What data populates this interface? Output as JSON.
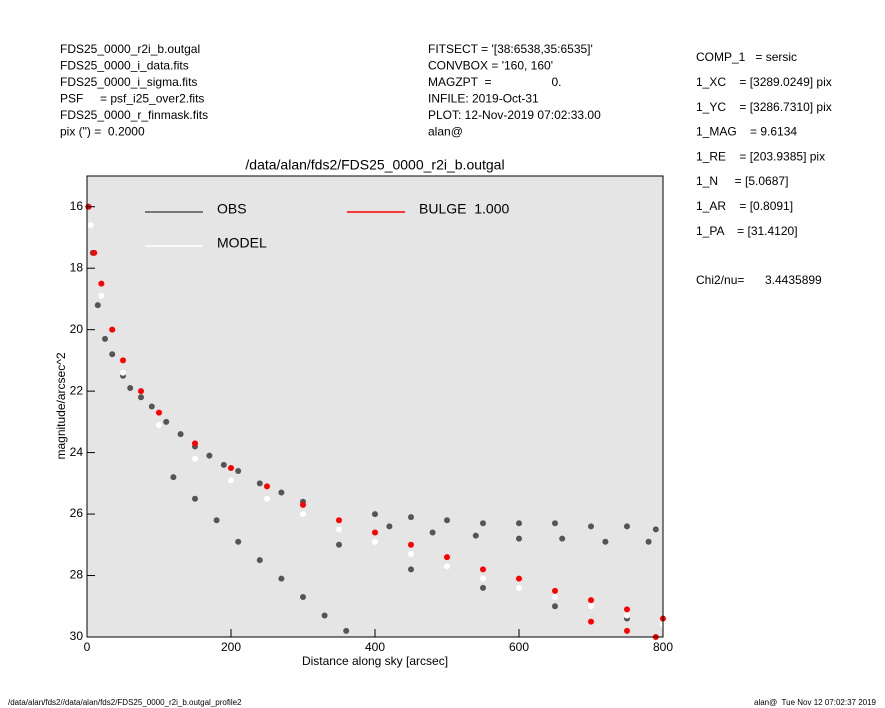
{
  "header_left": [
    "FDS25_0000_r2i_b.outgal",
    "FDS25_0000_i_data.fits",
    "FDS25_0000_i_sigma.fits",
    "PSF     = psf_i25_over2.fits",
    "FDS25_0000_r_finmask.fits",
    "pix (\") =  0.2000"
  ],
  "header_center": [
    "FITSECT = '[38:6538,35:6535]'",
    "CONVBOX = '160, 160'",
    "MAGZPT  =                  0.",
    "INFILE: 2019-Oct-31",
    "PLOT: 12-Nov-2019 07:02:33.00",
    "alan@"
  ],
  "params": [
    "COMP_1   = sersic",
    "1_XC    = [3289.0249] pix",
    "1_YC    = [3286.7310] pix",
    "1_MAG    = 9.6134",
    "1_RE    = [203.9385] pix",
    "1_N     = [5.0687]",
    "1_AR    = [0.8091]",
    "1_PA    = [31.4120]"
  ],
  "chi2_label": "Chi2/nu=",
  "chi2_value": "3.4435899",
  "footer_left": "/data/alan/fds2//data/alan/fds2/FDS25_0000_r2i_b.outgal_profile2",
  "footer_right": "alan@  Tue Nov 12 07:02:37 2019",
  "chart_data": {
    "type": "scatter",
    "title": "/data/alan/fds2/FDS25_0000_r2i_b.outgal",
    "x_label": "Distance along sky [arcsec]",
    "y_label": "magnitude/arcsec^2",
    "xlim": [
      0,
      800
    ],
    "ylim": [
      30,
      15
    ],
    "xticks": [
      0,
      200,
      400,
      600,
      800
    ],
    "yticks": [
      16,
      18,
      20,
      22,
      24,
      26,
      28,
      30
    ],
    "series": [
      {
        "name": "OBS",
        "color": "#555555",
        "x": [
          2,
          8,
          15,
          25,
          35,
          50,
          60,
          75,
          90,
          110,
          130,
          150,
          170,
          190,
          210,
          240,
          270,
          300,
          120,
          150,
          180,
          210,
          240,
          270,
          300,
          330,
          360,
          400,
          450,
          500,
          550,
          600,
          650,
          700,
          750,
          790,
          420,
          480,
          540,
          600,
          660,
          720,
          780,
          350,
          450,
          550,
          650,
          750
        ],
        "values": [
          16.0,
          17.5,
          19.2,
          20.3,
          20.8,
          21.5,
          21.9,
          22.2,
          22.5,
          23.0,
          23.4,
          23.8,
          24.1,
          24.4,
          24.6,
          25.0,
          25.3,
          25.6,
          24.8,
          25.5,
          26.2,
          26.9,
          27.5,
          28.1,
          28.7,
          29.3,
          29.8,
          26.0,
          26.1,
          26.2,
          26.3,
          26.3,
          26.3,
          26.4,
          26.4,
          26.5,
          26.4,
          26.6,
          26.7,
          26.8,
          26.8,
          26.9,
          26.9,
          27.0,
          27.8,
          28.4,
          29.0,
          29.4
        ]
      },
      {
        "name": "MODEL",
        "color": "#ffffff",
        "x": [
          5,
          20,
          50,
          100,
          150,
          200,
          250,
          300,
          350,
          400,
          450,
          500,
          550,
          600,
          650,
          700,
          750,
          800
        ],
        "values": [
          16.6,
          18.9,
          21.4,
          23.1,
          24.2,
          24.9,
          25.5,
          26.0,
          26.5,
          26.9,
          27.3,
          27.7,
          28.1,
          28.4,
          28.7,
          29.0,
          29.3,
          29.6
        ]
      },
      {
        "name": "BULGE  1.000",
        "color": "#ff0000",
        "x": [
          2,
          10,
          20,
          35,
          50,
          75,
          100,
          150,
          200,
          250,
          300,
          350,
          400,
          450,
          500,
          550,
          600,
          650,
          700,
          750,
          800,
          700,
          750,
          790
        ],
        "values": [
          16.0,
          17.5,
          18.5,
          20.0,
          21.0,
          22.0,
          22.7,
          23.7,
          24.5,
          25.1,
          25.7,
          26.2,
          26.6,
          27.0,
          27.4,
          27.8,
          28.1,
          28.5,
          28.8,
          29.1,
          29.4,
          29.5,
          29.8,
          30.0
        ]
      }
    ]
  }
}
